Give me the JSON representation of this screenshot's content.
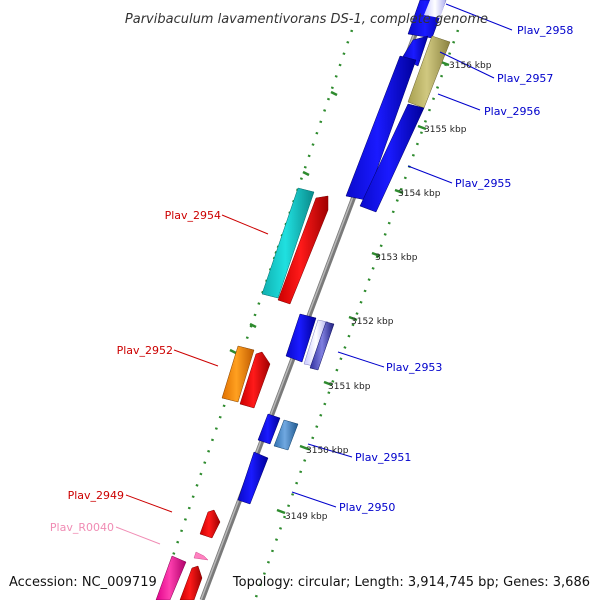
{
  "title": "Parvibaculum lavamentivorans DS-1, complete genome",
  "accession": "Accession: NC_009719",
  "topology": "Topology: circular; Length: 3,914,745 bp; Genes: 3,686",
  "colors": {
    "backbone": "#888888",
    "tick": "#2e8b2e",
    "forward_label": "#0000cc",
    "reverse_label": "#cc0000",
    "rna_label": "#f08cb4"
  },
  "kbp_labels": [
    "3156 kbp",
    "3155 kbp",
    "3154 kbp",
    "3153 kbp",
    "3152 kbp",
    "3151 kbp",
    "3150 kbp",
    "3149 kbp"
  ],
  "genes": [
    {
      "name": "Plav_2958",
      "strand": "forward"
    },
    {
      "name": "Plav_2957",
      "strand": "forward"
    },
    {
      "name": "Plav_2956",
      "strand": "forward"
    },
    {
      "name": "Plav_2955",
      "strand": "forward"
    },
    {
      "name": "Plav_2954",
      "strand": "reverse"
    },
    {
      "name": "Plav_2953",
      "strand": "forward"
    },
    {
      "name": "Plav_2952",
      "strand": "reverse"
    },
    {
      "name": "Plav_2951",
      "strand": "forward"
    },
    {
      "name": "Plav_2950",
      "strand": "forward"
    },
    {
      "name": "Plav_2949",
      "strand": "reverse"
    },
    {
      "name": "Plav_R0040",
      "strand": "reverse"
    }
  ]
}
